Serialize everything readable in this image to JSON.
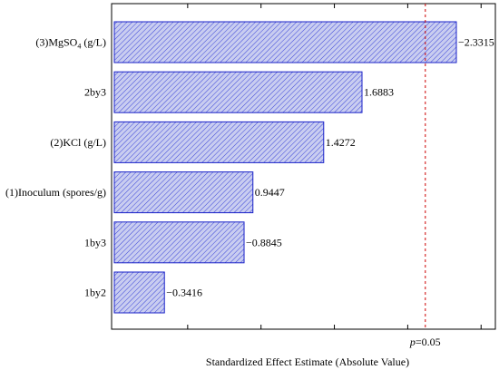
{
  "chart_data": {
    "type": "bar",
    "orientation": "horizontal",
    "title": "",
    "xlabel": "Standardized Effect Estimate (Absolute Value)",
    "ylabel": "",
    "xlim": [
      0,
      2.7
    ],
    "grid": false,
    "categories": [
      {
        "label": "(3)MgSO",
        "sub": "4",
        "suffix": " (g/L)"
      },
      {
        "label": "2by3",
        "sub": "",
        "suffix": ""
      },
      {
        "label": "(2)KCl (g/L)",
        "sub": "",
        "suffix": ""
      },
      {
        "label": "(1)Inoculum (spores/g)",
        "sub": "",
        "suffix": ""
      },
      {
        "label": "1by3",
        "sub": "",
        "suffix": ""
      },
      {
        "label": "1by2",
        "sub": "",
        "suffix": ""
      }
    ],
    "values": [
      2.3315,
      1.6883,
      1.4272,
      0.9447,
      0.8845,
      0.3416
    ],
    "value_labels": [
      "−2.3315",
      "1.6883",
      "1.4272",
      "0.9447",
      "−0.8845",
      "−0.3416"
    ],
    "reference_line": {
      "value": 2.12,
      "label_italic": "p",
      "label_rest": "=0.05"
    },
    "colors": {
      "bar_fill": "#c9cdf0",
      "bar_stroke": "#1a22c8",
      "hatch": "#3a44d8",
      "reference": "#cc0000",
      "axes": "#000000"
    }
  }
}
